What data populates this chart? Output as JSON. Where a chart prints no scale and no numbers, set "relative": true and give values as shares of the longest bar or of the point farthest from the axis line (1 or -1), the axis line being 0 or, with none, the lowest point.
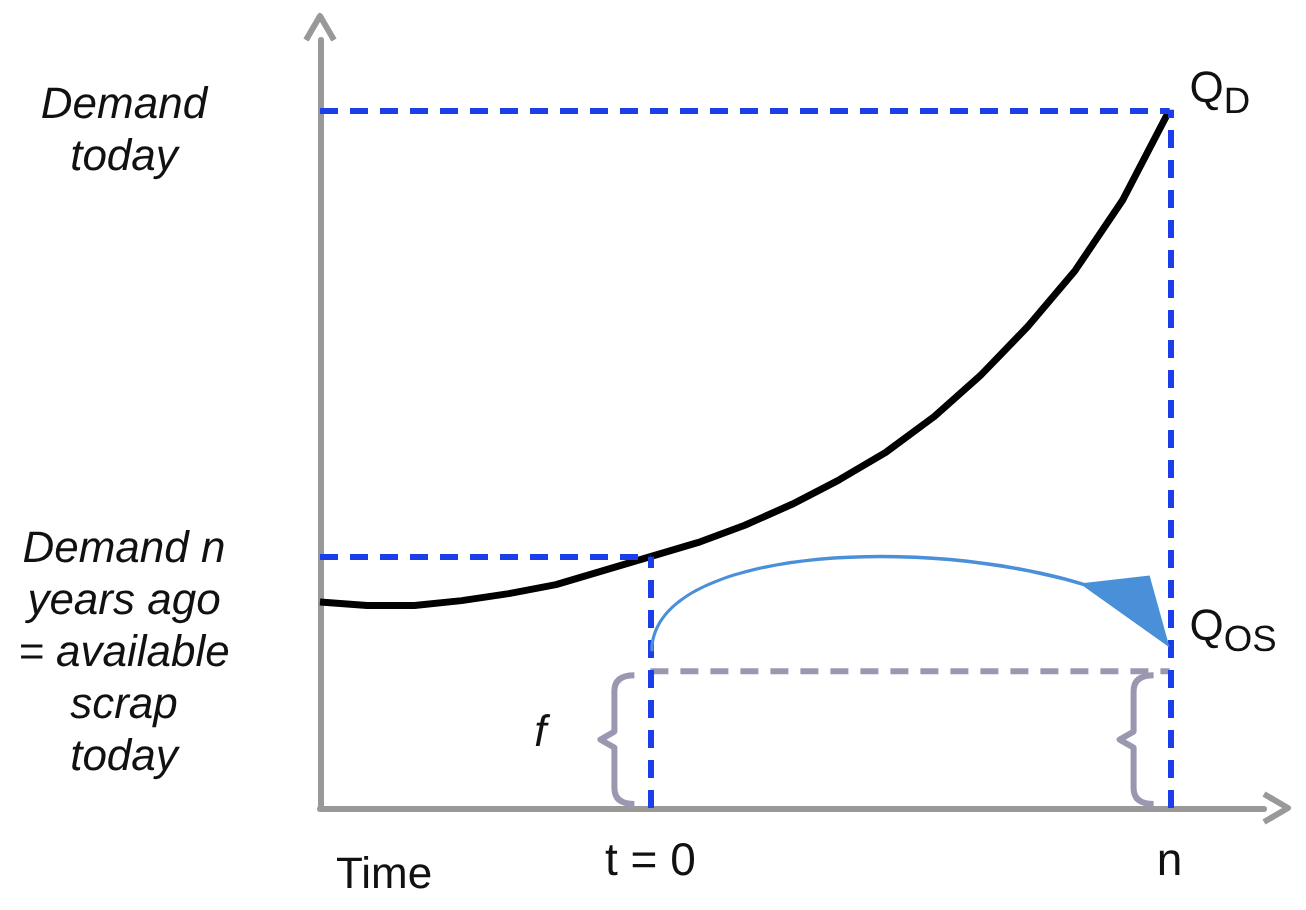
{
  "chart_data": {
    "type": "line",
    "relative": true,
    "xlabel": "Time",
    "marker": "none",
    "grid": false,
    "categories": [
      null,
      null,
      null,
      null,
      null,
      null,
      null,
      "t = 0",
      null,
      null,
      null,
      null,
      null,
      null,
      null,
      null,
      null,
      null,
      "n",
      null,
      null
    ],
    "series": [
      {
        "color": "#000000",
        "values": [
          0.295,
          0.29,
          0.29,
          0.297,
          0.307,
          0.32,
          0.34,
          0.36,
          0.38,
          0.405,
          0.435,
          0.47,
          0.51,
          0.56,
          0.62,
          0.69,
          0.77,
          0.87,
          1,
          null,
          null
        ]
      },
      {
        "color": "#9a98b0",
        "line_style": "dashed",
        "values": [
          null,
          null,
          null,
          null,
          null,
          null,
          null,
          0.196,
          0.196,
          0.196,
          0.196,
          0.196,
          0.196,
          0.196,
          0.196,
          0.196,
          0.196,
          0.196,
          0.196,
          null,
          null
        ]
      }
    ],
    "ref_lines": [
      {
        "axis": "y",
        "value": 1,
        "label": "Demand today",
        "color": "#1a3ee8",
        "line_style": "dashed"
      },
      {
        "axis": "y",
        "value": 0.36,
        "label": "Demand n years ago = available scrap today",
        "color": "#1a3ee8",
        "line_style": "dashed"
      },
      {
        "axis": "x",
        "value": "t = 0",
        "color": "#1a3ee8",
        "line_style": "dashed"
      },
      {
        "axis": "x",
        "value": "n",
        "color": "#1a3ee8",
        "line_style": "dashed"
      }
    ],
    "annotations": [
      {
        "text": "Q$_{D}$",
        "x": "n",
        "y": 1
      },
      {
        "text": "Q$_{OS}$",
        "x": "n",
        "y": 0.23
      },
      "f"
    ]
  }
}
